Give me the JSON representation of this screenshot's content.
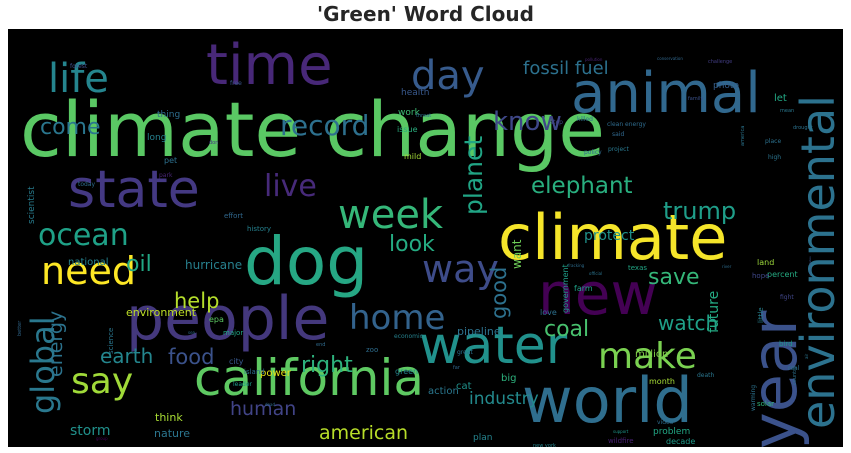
{
  "chart_data": {
    "type": "word-cloud",
    "title": "'Green' Word Cloud",
    "background": "#000000",
    "colormap": "viridis",
    "words": [
      {
        "text": "climate change",
        "weight": 1.0,
        "color": "#5ac864"
      },
      {
        "text": "dog",
        "weight": 0.74,
        "color": "#26a784"
      },
      {
        "text": "climate",
        "weight": 0.7,
        "color": "#f5e52a"
      },
      {
        "text": "world",
        "weight": 0.7,
        "color": "#2f6e8e"
      },
      {
        "text": "people",
        "weight": 0.68,
        "color": "#44387d"
      },
      {
        "text": "year",
        "weight": 0.68,
        "color": "#3b528b"
      },
      {
        "text": "animal",
        "weight": 0.62,
        "color": "#31688e"
      },
      {
        "text": "california",
        "weight": 0.56,
        "color": "#5ec962"
      },
      {
        "text": "time",
        "weight": 0.62,
        "color": "#482878"
      },
      {
        "text": "water",
        "weight": 0.58,
        "color": "#21918c"
      },
      {
        "text": "new",
        "weight": 0.62,
        "color": "#440154"
      },
      {
        "text": "state",
        "weight": 0.58,
        "color": "#443983"
      },
      {
        "text": "environmental",
        "weight": 0.52,
        "color": "#2c728e"
      },
      {
        "text": "week",
        "weight": 0.46,
        "color": "#35b779"
      },
      {
        "text": "life",
        "weight": 0.46,
        "color": "#25858e"
      },
      {
        "text": "day",
        "weight": 0.46,
        "color": "#375b8d"
      },
      {
        "text": "need",
        "weight": 0.42,
        "color": "#fde725"
      },
      {
        "text": "way",
        "weight": 0.42,
        "color": "#3e4c8a"
      },
      {
        "text": "say",
        "weight": 0.4,
        "color": "#a0da39"
      },
      {
        "text": "make",
        "weight": 0.4,
        "color": "#7ad151"
      },
      {
        "text": "home",
        "weight": 0.38,
        "color": "#33638d"
      },
      {
        "text": "global",
        "weight": 0.38,
        "color": "#2a788e"
      },
      {
        "text": "ocean",
        "weight": 0.34,
        "color": "#1fa187"
      },
      {
        "text": "live",
        "weight": 0.34,
        "color": "#472a7a"
      },
      {
        "text": "record",
        "weight": 0.3,
        "color": "#2d708e"
      },
      {
        "text": "know",
        "weight": 0.28,
        "color": "#3f4788"
      },
      {
        "text": "planet",
        "weight": 0.28,
        "color": "#21a585"
      },
      {
        "text": "elephant",
        "weight": 0.26,
        "color": "#29af7f"
      },
      {
        "text": "trump",
        "weight": 0.26,
        "color": "#1f9e89"
      },
      {
        "text": "come",
        "weight": 0.24,
        "color": "#2a768e"
      },
      {
        "text": "fossil fuel",
        "weight": 0.2,
        "color": "#2c718e"
      },
      {
        "text": "look",
        "weight": 0.26,
        "color": "#25ac82"
      },
      {
        "text": "save",
        "weight": 0.26,
        "color": "#35b779"
      },
      {
        "text": "oil",
        "weight": 0.26,
        "color": "#22a884"
      },
      {
        "text": "help",
        "weight": 0.24,
        "color": "#b5de2b"
      },
      {
        "text": "coal",
        "weight": 0.26,
        "color": "#48c16e"
      },
      {
        "text": "watch",
        "weight": 0.24,
        "color": "#1fa088"
      },
      {
        "text": "right",
        "weight": 0.26,
        "color": "#2db27d"
      },
      {
        "text": "good",
        "weight": 0.24,
        "color": "#2d718e"
      },
      {
        "text": "earth",
        "weight": 0.24,
        "color": "#24868e"
      },
      {
        "text": "food",
        "weight": 0.26,
        "color": "#3b528b"
      },
      {
        "text": "energy",
        "weight": 0.22,
        "color": "#2c738e"
      },
      {
        "text": "human",
        "weight": 0.22,
        "color": "#414487"
      },
      {
        "text": "american",
        "weight": 0.22,
        "color": "#b8de29"
      },
      {
        "text": "industry",
        "weight": 0.2,
        "color": "#238a8d"
      },
      {
        "text": "protect",
        "weight": 0.16,
        "color": "#20938c"
      },
      {
        "text": "future",
        "weight": 0.16,
        "color": "#24aa83"
      },
      {
        "text": "hurricane",
        "weight": 0.14,
        "color": "#27808e"
      },
      {
        "text": "storm",
        "weight": 0.16,
        "color": "#21918c"
      },
      {
        "text": "want",
        "weight": 0.14,
        "color": "#6ece58"
      },
      {
        "text": "environment",
        "weight": 0.12,
        "color": "#bddf26"
      },
      {
        "text": "million",
        "weight": 0.12,
        "color": "#84d44b"
      },
      {
        "text": "national",
        "weight": 0.12,
        "color": "#26828e"
      },
      {
        "text": "pipeline",
        "weight": 0.12,
        "color": "#2c728e"
      },
      {
        "text": "scientist",
        "weight": 0.1,
        "color": "#287c8e"
      },
      {
        "text": "think",
        "weight": 0.12,
        "color": "#a8db34"
      },
      {
        "text": "nature",
        "weight": 0.12,
        "color": "#2b758e"
      },
      {
        "text": "power",
        "weight": 0.11,
        "color": "#e5e419"
      },
      {
        "text": "action",
        "weight": 0.11,
        "color": "#2a778e"
      },
      {
        "text": "cat",
        "weight": 0.11,
        "color": "#20928c"
      },
      {
        "text": "plan",
        "weight": 0.1,
        "color": "#25848e"
      },
      {
        "text": "problem",
        "weight": 0.1,
        "color": "#22a785"
      },
      {
        "text": "decade",
        "weight": 0.09,
        "color": "#1e9b8a"
      },
      {
        "text": "wildfire",
        "weight": 0.08,
        "color": "#482173"
      },
      {
        "text": "health",
        "weight": 0.1,
        "color": "#38588c"
      },
      {
        "text": "work",
        "weight": 0.1,
        "color": "#3dbc74"
      },
      {
        "text": "thing",
        "weight": 0.1,
        "color": "#2e6d8e"
      },
      {
        "text": "long",
        "weight": 0.1,
        "color": "#26818e"
      },
      {
        "text": "pet",
        "weight": 0.09,
        "color": "#2d708e"
      },
      {
        "text": "issue",
        "weight": 0.09,
        "color": "#29af7f"
      },
      {
        "text": "photo",
        "weight": 0.1,
        "color": "#355f8d"
      },
      {
        "text": "let",
        "weight": 0.1,
        "color": "#22a884"
      },
      {
        "text": "mild",
        "weight": 0.09,
        "color": "#a2da37"
      },
      {
        "text": "government",
        "weight": 0.09,
        "color": "#1f9e89"
      },
      {
        "text": "big",
        "weight": 0.1,
        "color": "#2db27d"
      },
      {
        "text": "land",
        "weight": 0.09,
        "color": "#9dd93b"
      },
      {
        "text": "percent",
        "weight": 0.09,
        "color": "#25ab82"
      },
      {
        "text": "farm",
        "weight": 0.09,
        "color": "#1fa187"
      },
      {
        "text": "love",
        "weight": 0.09,
        "color": "#2d708e"
      },
      {
        "text": "green",
        "weight": 0.09,
        "color": "#24868e"
      },
      {
        "text": "science",
        "weight": 0.09,
        "color": "#2a768e"
      },
      {
        "text": "epa",
        "weight": 0.09,
        "color": "#5cc863"
      },
      {
        "text": "major",
        "weight": 0.08,
        "color": "#22a785"
      },
      {
        "text": "history",
        "weight": 0.08,
        "color": "#26818e"
      },
      {
        "text": "effort",
        "weight": 0.08,
        "color": "#31688e"
      },
      {
        "text": "city",
        "weight": 0.08,
        "color": "#38588c"
      },
      {
        "text": "month",
        "weight": 0.08,
        "color": "#a5db36"
      },
      {
        "text": "solar",
        "weight": 0.08,
        "color": "#31b57b"
      },
      {
        "text": "little",
        "weight": 0.08,
        "color": "#27808e"
      },
      {
        "text": "bird",
        "weight": 0.08,
        "color": "#1f968b"
      },
      {
        "text": "zoo",
        "weight": 0.08,
        "color": "#2e6d8e"
      },
      {
        "text": "texas",
        "weight": 0.07,
        "color": "#22a785"
      },
      {
        "text": "island",
        "weight": 0.07,
        "color": "#2e6e8e"
      },
      {
        "text": "leader",
        "weight": 0.06,
        "color": "#1e9b8a"
      },
      {
        "text": "economic",
        "weight": 0.06,
        "color": "#26828e"
      },
      {
        "text": "death",
        "weight": 0.06,
        "color": "#2a768e"
      },
      {
        "text": "hope",
        "weight": 0.07,
        "color": "#3f4788"
      },
      {
        "text": "fight",
        "weight": 0.06,
        "color": "#404688"
      },
      {
        "text": "real",
        "weight": 0.06,
        "color": "#2c728e"
      },
      {
        "text": "warming",
        "weight": 0.06,
        "color": "#2c728e"
      },
      {
        "text": "video",
        "weight": 0.06,
        "color": "#2e6d8e"
      },
      {
        "text": "new york",
        "weight": 0.05,
        "color": "#25858e"
      },
      {
        "text": "killed",
        "weight": 0.06,
        "color": "#2d708e"
      },
      {
        "text": "clean energy",
        "weight": 0.06,
        "color": "#2f6c8e"
      },
      {
        "text": "stop",
        "weight": 0.06,
        "color": "#414487"
      },
      {
        "text": "free",
        "weight": 0.06,
        "color": "#39568c"
      },
      {
        "text": "forest",
        "weight": 0.06,
        "color": "#3d4e8a"
      },
      {
        "text": "park",
        "weight": 0.06,
        "color": "#482475"
      },
      {
        "text": "today",
        "weight": 0.06,
        "color": "#2e6d8e"
      },
      {
        "text": "policy",
        "weight": 0.06,
        "color": "#2f6b8e"
      },
      {
        "text": "project",
        "weight": 0.06,
        "color": "#2a788e"
      },
      {
        "text": "place",
        "weight": 0.06,
        "color": "#2c718e"
      },
      {
        "text": "high",
        "weight": 0.06,
        "color": "#2b748e"
      },
      {
        "text": "mean",
        "weight": 0.05,
        "color": "#2a778e"
      },
      {
        "text": "better",
        "weight": 0.05,
        "color": "#31688e"
      },
      {
        "text": "great",
        "weight": 0.06,
        "color": "#2c718e"
      },
      {
        "text": "said",
        "weight": 0.06,
        "color": "#31688e"
      },
      {
        "text": "country",
        "weight": 0.06,
        "color": "#2d708e"
      },
      {
        "text": "america",
        "weight": 0.06,
        "color": "#2b748e"
      },
      {
        "text": "drought",
        "weight": 0.05,
        "color": "#2c728e"
      },
      {
        "text": "family",
        "weight": 0.05,
        "color": "#3b528b"
      },
      {
        "text": "challenge",
        "weight": 0.05,
        "color": "#433e85"
      },
      {
        "text": "conservation",
        "weight": 0.04,
        "color": "#31688e"
      },
      {
        "text": "pollution",
        "weight": 0.04,
        "color": "#482475"
      },
      {
        "text": "support",
        "weight": 0.04,
        "color": "#1f988b"
      },
      {
        "text": "threat",
        "weight": 0.05,
        "color": "#2d708e"
      },
      {
        "text": "fracking",
        "weight": 0.04,
        "color": "#2e6d8e"
      },
      {
        "text": "official",
        "weight": 0.04,
        "color": "#2b748e"
      },
      {
        "text": "river",
        "weight": 0.04,
        "color": "#2e6d8e"
      },
      {
        "text": "group",
        "weight": 0.04,
        "color": "#440154"
      },
      {
        "text": "dead",
        "weight": 0.04,
        "color": "#2e6d8e"
      },
      {
        "text": "end",
        "weight": 0.05,
        "color": "#2f6b8e"
      },
      {
        "text": "far",
        "weight": 0.05,
        "color": "#31688e"
      },
      {
        "text": "don",
        "weight": 0.05,
        "color": "#453781"
      },
      {
        "text": "sea",
        "weight": 0.04,
        "color": "#2e6e8e"
      },
      {
        "text": "united states",
        "weight": 0.03,
        "color": "#3b528b"
      },
      {
        "text": "air",
        "weight": 0.04,
        "color": "#2b748e"
      }
    ]
  }
}
